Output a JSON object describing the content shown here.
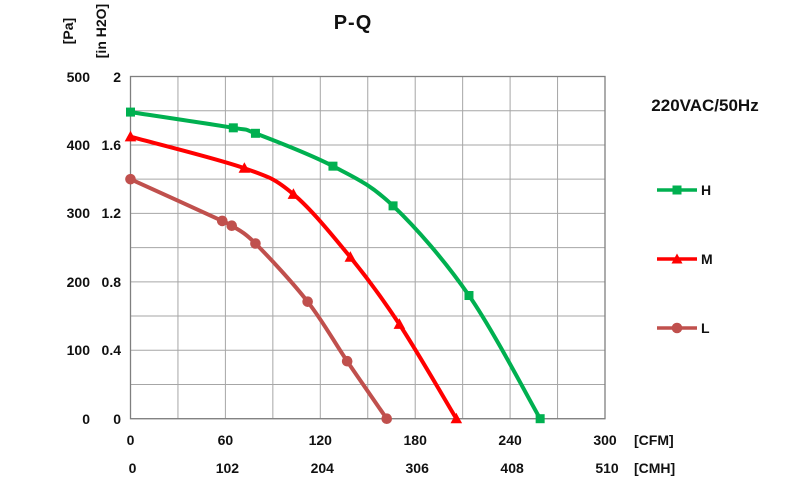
{
  "power_label": "220VAC/50Hz",
  "chart_data": {
    "type": "line",
    "title": "P-Q",
    "grid": true,
    "legend_position": "right",
    "y_axis": {
      "primary_unit": "[Pa]",
      "secondary_unit": "[in H2O]",
      "primary_ticks": [
        "500",
        "400",
        "300",
        "200",
        "100",
        "0"
      ],
      "secondary_ticks": [
        "2",
        "1.6",
        "1.2",
        "0.8",
        "0.4",
        "0"
      ],
      "primary_range": [
        0,
        500
      ],
      "grid_step_pa": 50
    },
    "x_axis": {
      "primary_unit": "[CFM]",
      "secondary_unit": "[CMH]",
      "primary_ticks": [
        "0",
        "60",
        "120",
        "180",
        "240",
        "300"
      ],
      "secondary_ticks": [
        "0",
        "102",
        "204",
        "306",
        "408",
        "510"
      ],
      "primary_range": [
        0,
        300
      ],
      "grid_step_cfm": 30
    },
    "series": [
      {
        "name": "H",
        "marker": "square",
        "color": "#00B050",
        "points_cfm_pa": [
          [
            0,
            448
          ],
          [
            65,
            425
          ],
          [
            79,
            417
          ],
          [
            128,
            369
          ],
          [
            166,
            311
          ],
          [
            214,
            180
          ],
          [
            259,
            0
          ]
        ]
      },
      {
        "name": "M",
        "marker": "triangle",
        "color": "#FF0000",
        "points_cfm_pa": [
          [
            0,
            412
          ],
          [
            72,
            366
          ],
          [
            103,
            328
          ],
          [
            139,
            236
          ],
          [
            170,
            138
          ],
          [
            206,
            0
          ]
        ]
      },
      {
        "name": "L",
        "marker": "circle",
        "color": "#C0504D",
        "points_cfm_pa": [
          [
            0,
            350
          ],
          [
            58,
            289
          ],
          [
            64,
            282
          ],
          [
            79,
            256
          ],
          [
            112,
            171
          ],
          [
            137,
            84
          ],
          [
            162,
            0
          ]
        ]
      }
    ]
  },
  "colors": {
    "grid": "#a6a6a6",
    "plot_border": "#7f7f7f",
    "text": "#111111"
  }
}
